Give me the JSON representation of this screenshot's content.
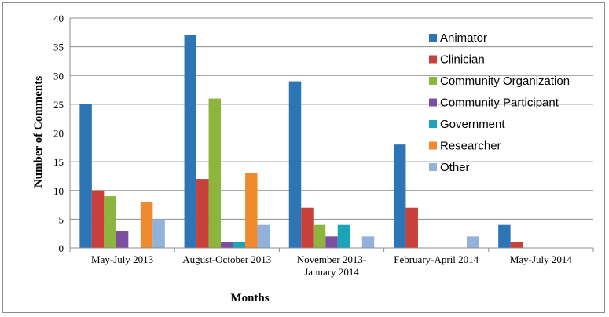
{
  "chart_data": {
    "type": "bar",
    "title": "",
    "xlabel": "Months",
    "ylabel": "Number of Comments",
    "ylim": [
      0,
      40
    ],
    "yticks": [
      0,
      5,
      10,
      15,
      20,
      25,
      30,
      35,
      40
    ],
    "grid": true,
    "legend_position": "right",
    "categories": [
      [
        "May-July 2013"
      ],
      [
        "August-October 2013"
      ],
      [
        "November 2013-",
        "January 2014"
      ],
      [
        "February-April 2014"
      ],
      [
        "May-July 2014"
      ]
    ],
    "series": [
      {
        "name": "Animator",
        "color": "#2E75B6",
        "values": [
          25,
          37,
          29,
          18,
          4
        ]
      },
      {
        "name": "Clinician",
        "color": "#C9403A",
        "values": [
          10,
          12,
          7,
          7,
          1
        ]
      },
      {
        "name": "Community Organization",
        "color": "#8DB53E",
        "values": [
          9,
          26,
          4,
          0,
          0
        ]
      },
      {
        "name": "Community Participant",
        "color": "#7B4F9E",
        "values": [
          3,
          1,
          2,
          0,
          0
        ]
      },
      {
        "name": "Government",
        "color": "#1BA3B8",
        "values": [
          0,
          1,
          4,
          0,
          0
        ]
      },
      {
        "name": "Researcher",
        "color": "#F08A2E",
        "values": [
          8,
          13,
          0,
          0,
          0
        ]
      },
      {
        "name": "Other",
        "color": "#92B2DB",
        "values": [
          5,
          4,
          2,
          2,
          0
        ]
      }
    ]
  }
}
